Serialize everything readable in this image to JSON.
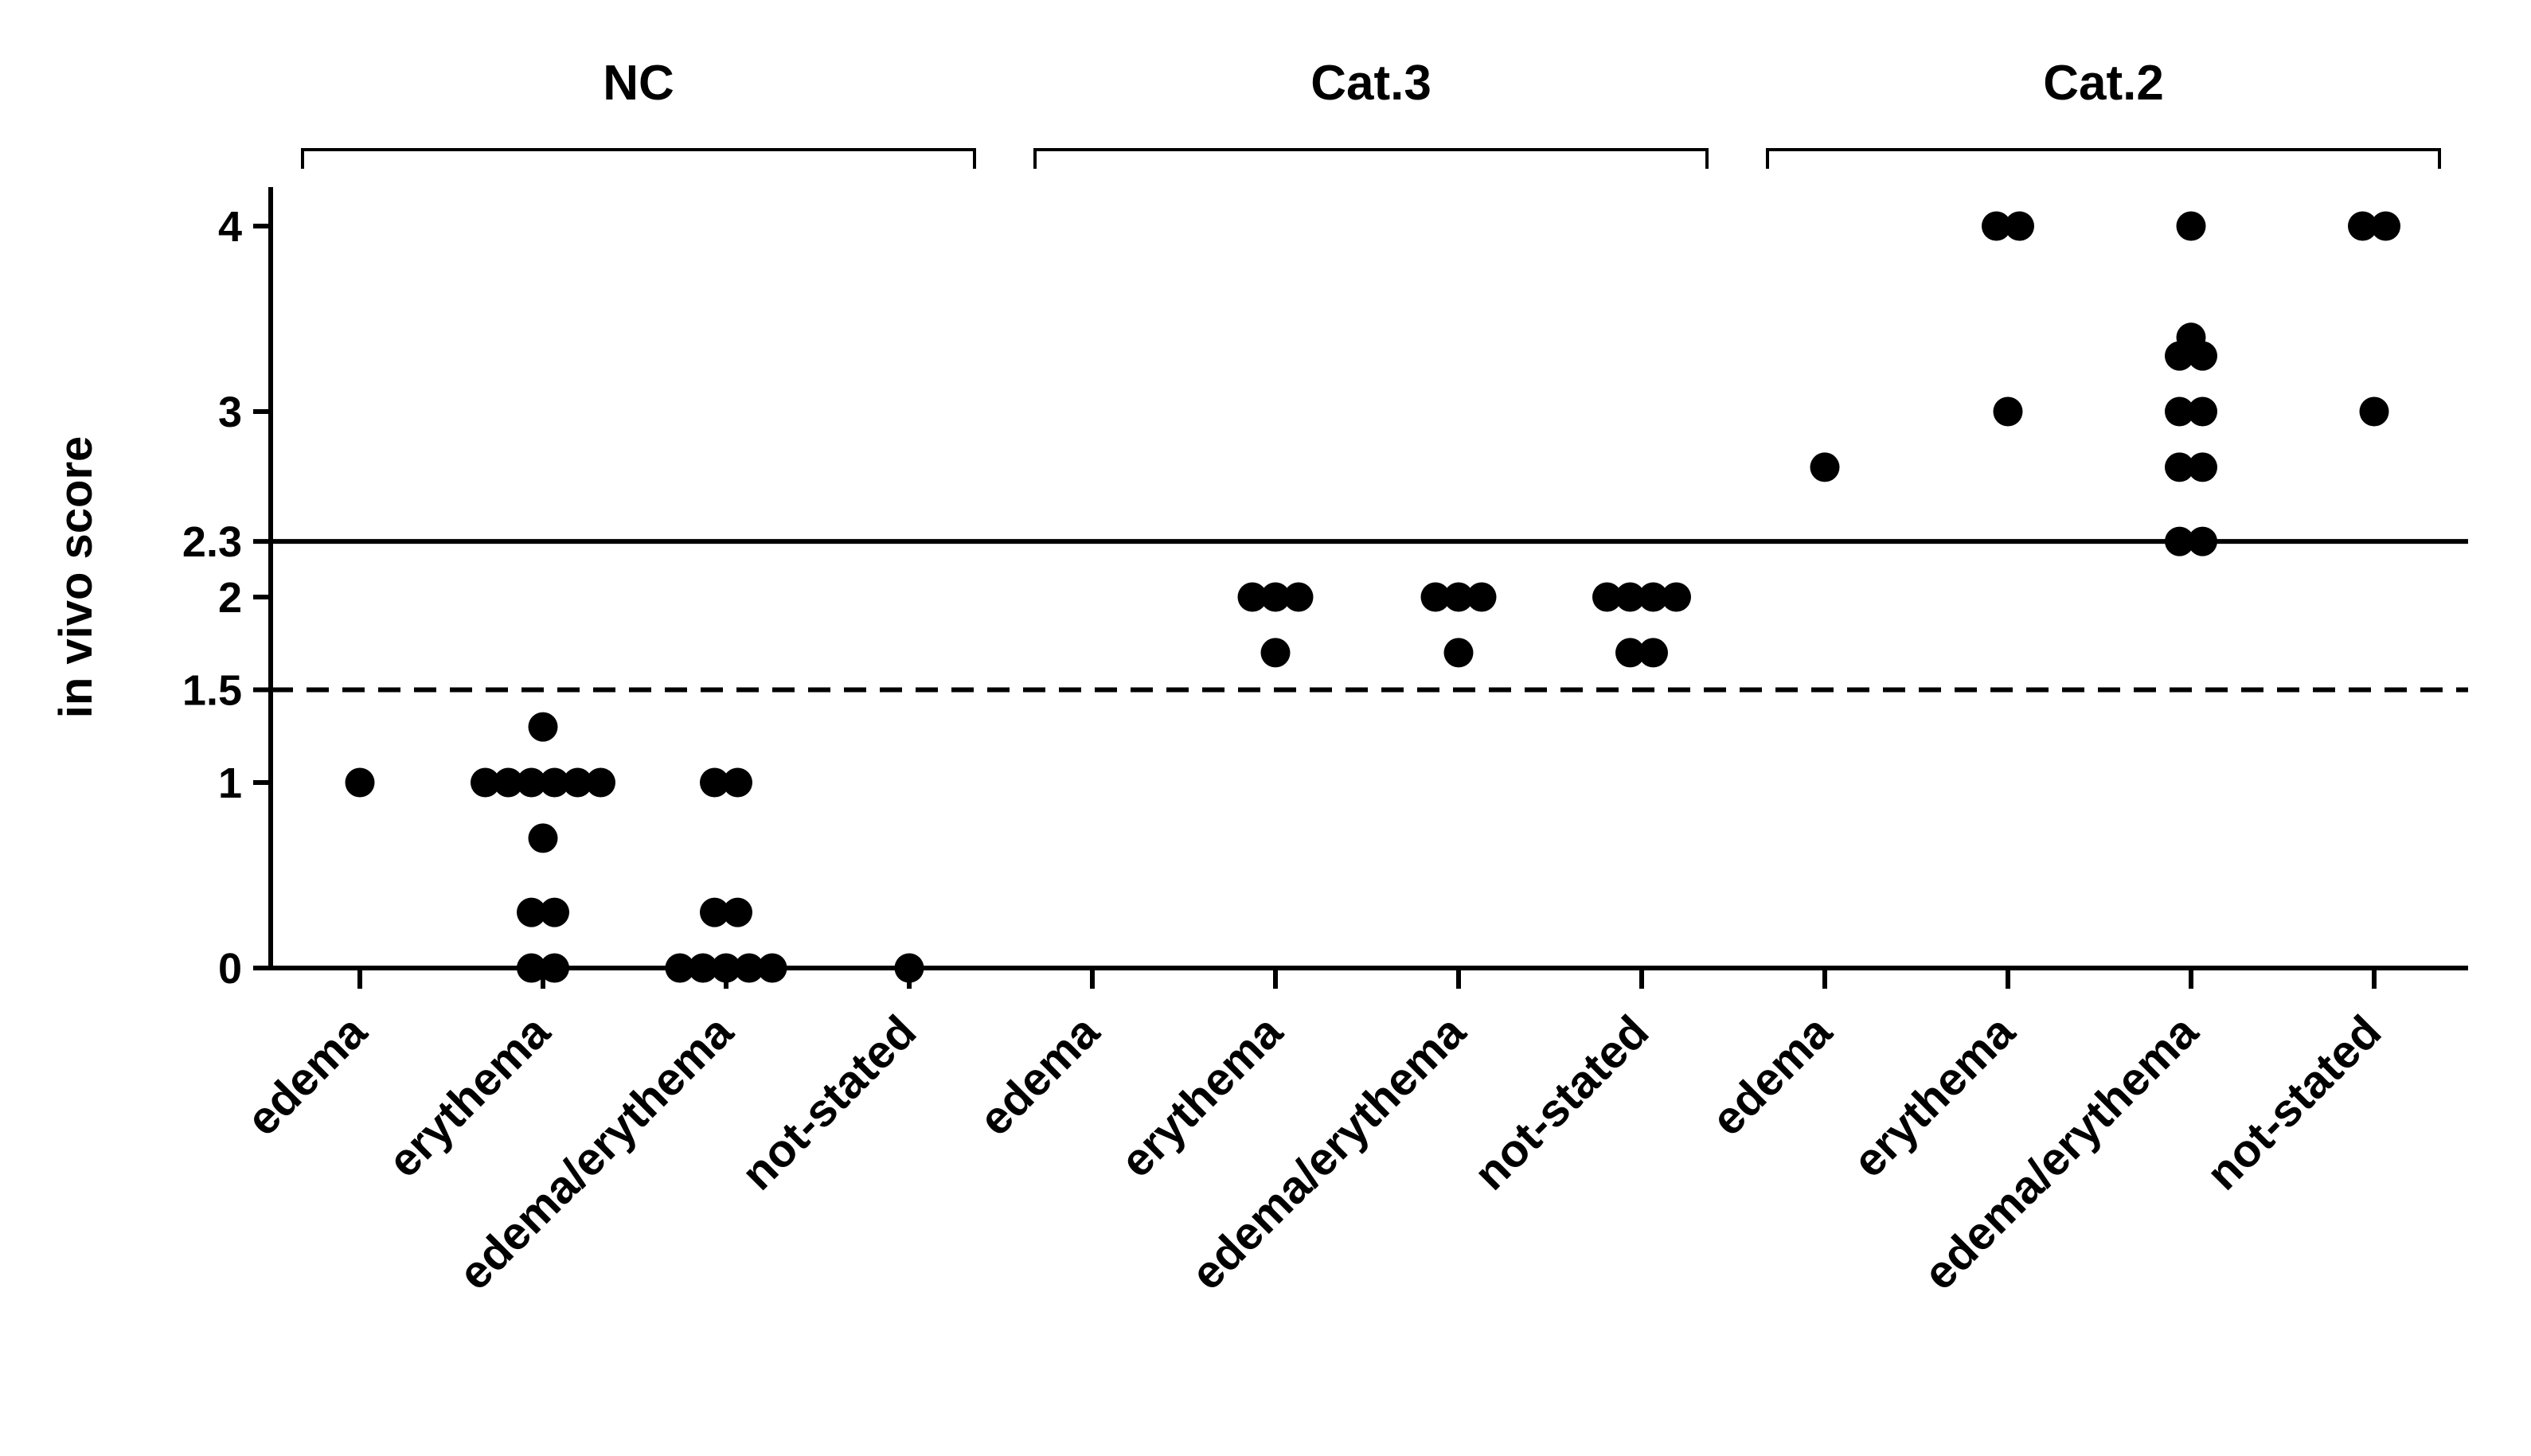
{
  "chart_data": {
    "type": "scatter",
    "ylabel": "in vivo score",
    "xlabel": "",
    "ylim": [
      0,
      4.2
    ],
    "yticks": [
      {
        "value": 0,
        "label": "0"
      },
      {
        "value": 1,
        "label": "1"
      },
      {
        "value": 1.5,
        "label": "1.5"
      },
      {
        "value": 2,
        "label": "2"
      },
      {
        "value": 2.3,
        "label": "2.3"
      },
      {
        "value": 3,
        "label": "3"
      },
      {
        "value": 4,
        "label": "4"
      }
    ],
    "reference_lines": [
      {
        "value": 2.3,
        "style": "solid"
      },
      {
        "value": 1.5,
        "style": "dashed"
      }
    ],
    "groups": [
      {
        "name": "NC",
        "first": 0,
        "last": 3
      },
      {
        "name": "Cat.3",
        "first": 4,
        "last": 7
      },
      {
        "name": "Cat.2",
        "first": 8,
        "last": 11
      }
    ],
    "categories": [
      {
        "label": "edema",
        "points": [
          1
        ]
      },
      {
        "label": "erythema",
        "points": [
          0,
          0,
          0.3,
          0.3,
          0.7,
          1,
          1,
          1,
          1,
          1,
          1,
          1.3
        ]
      },
      {
        "label": "edema/erythema",
        "points": [
          0,
          0,
          0,
          0,
          0,
          0.3,
          0.3,
          1,
          1
        ]
      },
      {
        "label": "not-stated",
        "points": [
          0
        ]
      },
      {
        "label": "edema",
        "points": []
      },
      {
        "label": "erythema",
        "points": [
          1.7,
          2,
          2,
          2
        ]
      },
      {
        "label": "edema/erythema",
        "points": [
          1.7,
          2,
          2,
          2
        ]
      },
      {
        "label": "not-stated",
        "points": [
          1.7,
          1.7,
          2,
          2,
          2,
          2
        ]
      },
      {
        "label": "edema",
        "points": [
          2.7
        ]
      },
      {
        "label": "erythema",
        "points": [
          3,
          4,
          4
        ]
      },
      {
        "label": "edema/erythema",
        "points": [
          2.3,
          2.3,
          2.7,
          2.7,
          3,
          3,
          3.3,
          3.3,
          3.4,
          4
        ]
      },
      {
        "label": "not-stated",
        "points": [
          3,
          4,
          4
        ]
      }
    ]
  }
}
